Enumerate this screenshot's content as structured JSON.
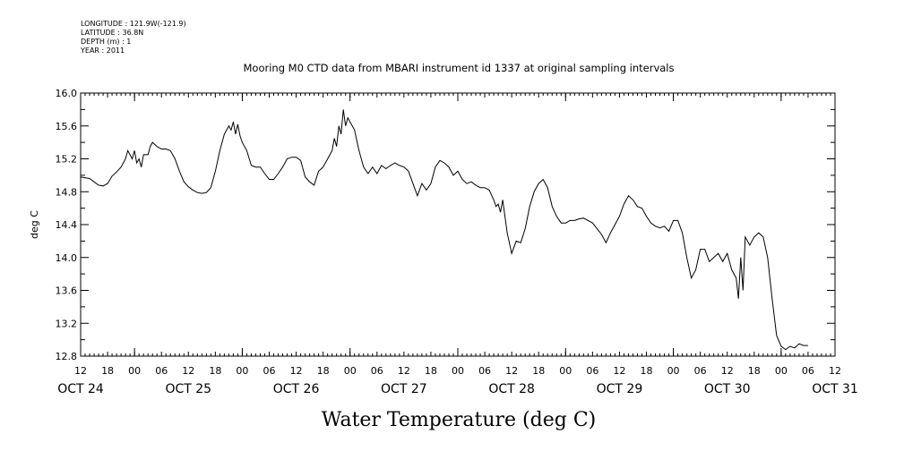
{
  "header": {
    "longitude": "LONGITUDE : 121.9W(-121.9)",
    "latitude": "LATITUDE : 36.8N",
    "depth": "DEPTH (m) : 1",
    "year": "YEAR : 2011"
  },
  "chart_data": {
    "type": "line",
    "title": "Mooring M0 CTD data from MBARI instrument id 1337 at original sampling intervals",
    "xlabel": "Water Temperature (deg C)",
    "ylabel": "deg C",
    "ylim": [
      12.8,
      16.0
    ],
    "yticks": [
      "12.8",
      "13.2",
      "13.6",
      "14.0",
      "14.4",
      "14.8",
      "15.2",
      "15.6",
      "16.0"
    ],
    "xrange_hours": [
      0,
      168
    ],
    "x_hour_labels": [
      "12",
      "18",
      "00",
      "06",
      "12",
      "18",
      "00",
      "06",
      "12",
      "18",
      "00",
      "06",
      "12",
      "18",
      "00",
      "06",
      "12",
      "18",
      "00",
      "06",
      "12",
      "18",
      "00",
      "06",
      "12",
      "18",
      "00",
      "06",
      "12"
    ],
    "day_labels": [
      "OCT 24",
      "OCT 25",
      "OCT 26",
      "OCT 27",
      "OCT 28",
      "OCT 29",
      "OCT 30",
      "OCT 31"
    ],
    "grid": false,
    "series": [
      {
        "x_unit": "hours since Oct 24 12:00",
        "points": [
          [
            0,
            14.98
          ],
          [
            2,
            14.96
          ],
          [
            3,
            14.92
          ],
          [
            4,
            14.88
          ],
          [
            5,
            14.87
          ],
          [
            6,
            14.9
          ],
          [
            7,
            14.99
          ],
          [
            8,
            15.04
          ],
          [
            9,
            15.1
          ],
          [
            10,
            15.2
          ],
          [
            10.5,
            15.3
          ],
          [
            11,
            15.25
          ],
          [
            11.5,
            15.2
          ],
          [
            12,
            15.3
          ],
          [
            12.5,
            15.15
          ],
          [
            13,
            15.2
          ],
          [
            13.5,
            15.1
          ],
          [
            14,
            15.25
          ],
          [
            15,
            15.25
          ],
          [
            15.5,
            15.35
          ],
          [
            16,
            15.4
          ],
          [
            17,
            15.35
          ],
          [
            18,
            15.32
          ],
          [
            19,
            15.32
          ],
          [
            20,
            15.3
          ],
          [
            21,
            15.2
          ],
          [
            22,
            15.05
          ],
          [
            23,
            14.92
          ],
          [
            24,
            14.86
          ],
          [
            25,
            14.82
          ],
          [
            26,
            14.79
          ],
          [
            27,
            14.78
          ],
          [
            28,
            14.79
          ],
          [
            29,
            14.85
          ],
          [
            30,
            15.05
          ],
          [
            31,
            15.3
          ],
          [
            32,
            15.5
          ],
          [
            33,
            15.6
          ],
          [
            33.5,
            15.55
          ],
          [
            34,
            15.65
          ],
          [
            34.5,
            15.5
          ],
          [
            35,
            15.62
          ],
          [
            35.5,
            15.48
          ],
          [
            36,
            15.4
          ],
          [
            37,
            15.3
          ],
          [
            38,
            15.12
          ],
          [
            39,
            15.1
          ],
          [
            40,
            15.1
          ],
          [
            41,
            15.02
          ],
          [
            42,
            14.95
          ],
          [
            43,
            14.95
          ],
          [
            44,
            15.02
          ],
          [
            45,
            15.1
          ],
          [
            46,
            15.2
          ],
          [
            47,
            15.22
          ],
          [
            48,
            15.22
          ],
          [
            49,
            15.18
          ],
          [
            50,
            14.98
          ],
          [
            51,
            14.92
          ],
          [
            52,
            14.88
          ],
          [
            53,
            15.05
          ],
          [
            54,
            15.1
          ],
          [
            55,
            15.2
          ],
          [
            56,
            15.3
          ],
          [
            56.5,
            15.45
          ],
          [
            57,
            15.35
          ],
          [
            57.5,
            15.6
          ],
          [
            58,
            15.5
          ],
          [
            58.5,
            15.8
          ],
          [
            59,
            15.6
          ],
          [
            59.5,
            15.7
          ],
          [
            60,
            15.65
          ],
          [
            61,
            15.55
          ],
          [
            62,
            15.3
          ],
          [
            63,
            15.1
          ],
          [
            64,
            15.02
          ],
          [
            65,
            15.1
          ],
          [
            66,
            15.02
          ],
          [
            67,
            15.12
          ],
          [
            68,
            15.08
          ],
          [
            69,
            15.12
          ],
          [
            70,
            15.15
          ],
          [
            71,
            15.12
          ],
          [
            72,
            15.1
          ],
          [
            73,
            15.05
          ],
          [
            74,
            14.9
          ],
          [
            75,
            14.75
          ],
          [
            76,
            14.9
          ],
          [
            77,
            14.82
          ],
          [
            78,
            14.9
          ],
          [
            79,
            15.1
          ],
          [
            80,
            15.18
          ],
          [
            81,
            15.15
          ],
          [
            82,
            15.1
          ],
          [
            83,
            15.0
          ],
          [
            84,
            15.05
          ],
          [
            85,
            14.95
          ],
          [
            86,
            14.9
          ],
          [
            87,
            14.92
          ],
          [
            88,
            14.88
          ],
          [
            89,
            14.85
          ],
          [
            90,
            14.85
          ],
          [
            91,
            14.82
          ],
          [
            92,
            14.7
          ],
          [
            92.5,
            14.62
          ],
          [
            93,
            14.65
          ],
          [
            93.5,
            14.55
          ],
          [
            94,
            14.7
          ],
          [
            95,
            14.3
          ],
          [
            96,
            14.05
          ],
          [
            97,
            14.2
          ],
          [
            98,
            14.18
          ],
          [
            99,
            14.35
          ],
          [
            100,
            14.62
          ],
          [
            101,
            14.8
          ],
          [
            102,
            14.9
          ],
          [
            103,
            14.95
          ],
          [
            104,
            14.85
          ],
          [
            105,
            14.62
          ],
          [
            106,
            14.5
          ],
          [
            107,
            14.42
          ],
          [
            108,
            14.42
          ],
          [
            109,
            14.45
          ],
          [
            110,
            14.45
          ],
          [
            111,
            14.47
          ],
          [
            112,
            14.48
          ],
          [
            113,
            14.45
          ],
          [
            114,
            14.42
          ],
          [
            115,
            14.35
          ],
          [
            116,
            14.28
          ],
          [
            117,
            14.18
          ],
          [
            118,
            14.3
          ],
          [
            119,
            14.4
          ],
          [
            120,
            14.5
          ],
          [
            121,
            14.65
          ],
          [
            122,
            14.75
          ],
          [
            123,
            14.7
          ],
          [
            124,
            14.62
          ],
          [
            125,
            14.6
          ],
          [
            126,
            14.5
          ],
          [
            127,
            14.42
          ],
          [
            128,
            14.38
          ],
          [
            129,
            14.36
          ],
          [
            130,
            14.38
          ],
          [
            131,
            14.32
          ],
          [
            132,
            14.45
          ],
          [
            133,
            14.45
          ],
          [
            134,
            14.3
          ],
          [
            135,
            14.0
          ],
          [
            136,
            13.75
          ],
          [
            137,
            13.85
          ],
          [
            138,
            14.1
          ],
          [
            139,
            14.1
          ],
          [
            140,
            13.95
          ],
          [
            141,
            14.0
          ],
          [
            142,
            14.05
          ],
          [
            143,
            13.95
          ],
          [
            144,
            14.05
          ],
          [
            145,
            13.85
          ],
          [
            146,
            13.75
          ],
          [
            146.5,
            13.5
          ],
          [
            147,
            14.0
          ],
          [
            147.5,
            13.6
          ],
          [
            148,
            14.25
          ],
          [
            149,
            14.15
          ],
          [
            150,
            14.25
          ],
          [
            151,
            14.3
          ],
          [
            152,
            14.25
          ],
          [
            153,
            14.0
          ],
          [
            154,
            13.5
          ],
          [
            155,
            13.05
          ],
          [
            156,
            12.92
          ],
          [
            157,
            12.88
          ],
          [
            158,
            12.92
          ],
          [
            159,
            12.9
          ],
          [
            160,
            12.95
          ],
          [
            161,
            12.93
          ],
          [
            162,
            12.93
          ]
        ]
      }
    ]
  }
}
